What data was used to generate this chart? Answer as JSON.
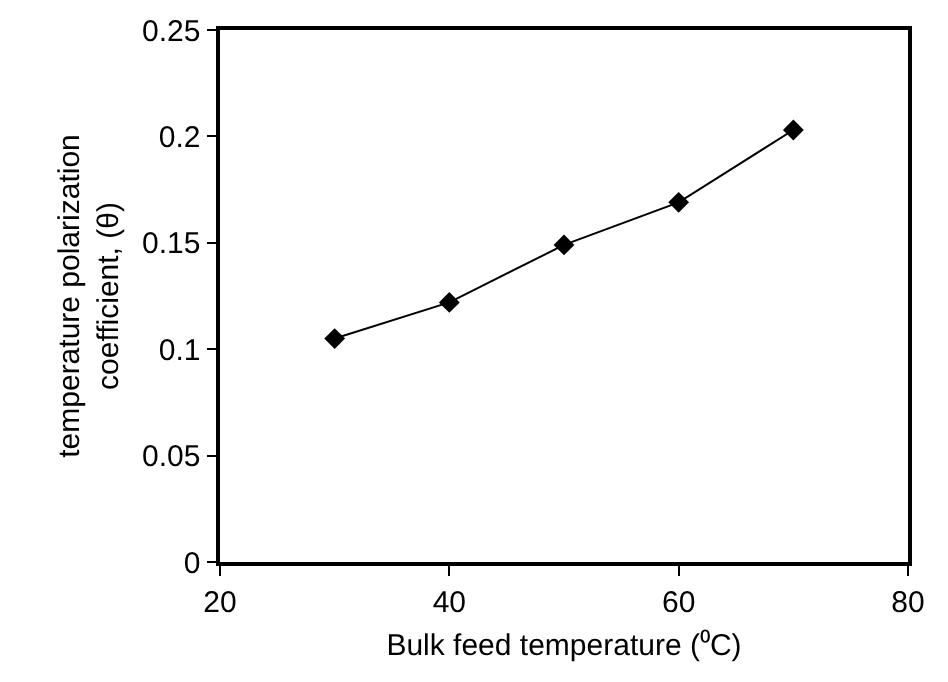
{
  "chart_data": {
    "type": "line",
    "xlabel": "Bulk feed temperature (⁰C)",
    "ylabel": "temperature polarization\ncoefficient, (θ)",
    "x": [
      30,
      40,
      50,
      60,
      70
    ],
    "series": [
      {
        "color": "#000000",
        "values": [
          0.105,
          0.122,
          0.149,
          0.169,
          0.203
        ]
      }
    ],
    "xlim": [
      20,
      80
    ],
    "xticks": [
      20,
      40,
      60,
      80
    ],
    "ylim": [
      0,
      0.25
    ],
    "yticks": [
      0,
      0.05,
      0.1,
      0.15,
      0.2,
      0.25
    ],
    "marker": "diamond",
    "line_style": "solid",
    "grid": false
  }
}
